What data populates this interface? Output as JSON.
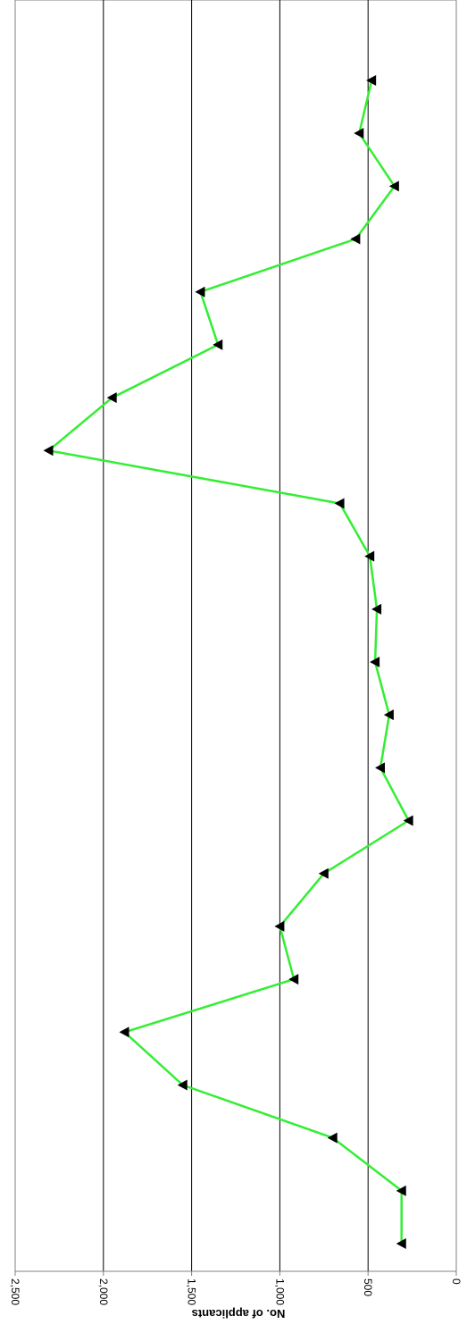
{
  "chart_data": {
    "type": "line",
    "orientation": "rotated-90-clockwise",
    "ylabel": "No. of applicants",
    "xlabel": "",
    "ylim": [
      0,
      2500
    ],
    "yticks": [
      0,
      500,
      1000,
      1500,
      2000,
      2500
    ],
    "ytick_labels": [
      "0",
      "500",
      "1,000",
      "1,500",
      "2,000",
      "2,500"
    ],
    "grid": true,
    "legend": "none",
    "marker": "triangle",
    "colors": {
      "line": "#33ee33",
      "marker": "#000000",
      "grid": "#000000",
      "axis": "#808080"
    },
    "values": [
      310,
      310,
      700,
      1550,
      1880,
      920,
      1000,
      750,
      270,
      430,
      380,
      460,
      450,
      490,
      660,
      2310,
      1950,
      1350,
      1450,
      570,
      350,
      550,
      480
    ]
  }
}
